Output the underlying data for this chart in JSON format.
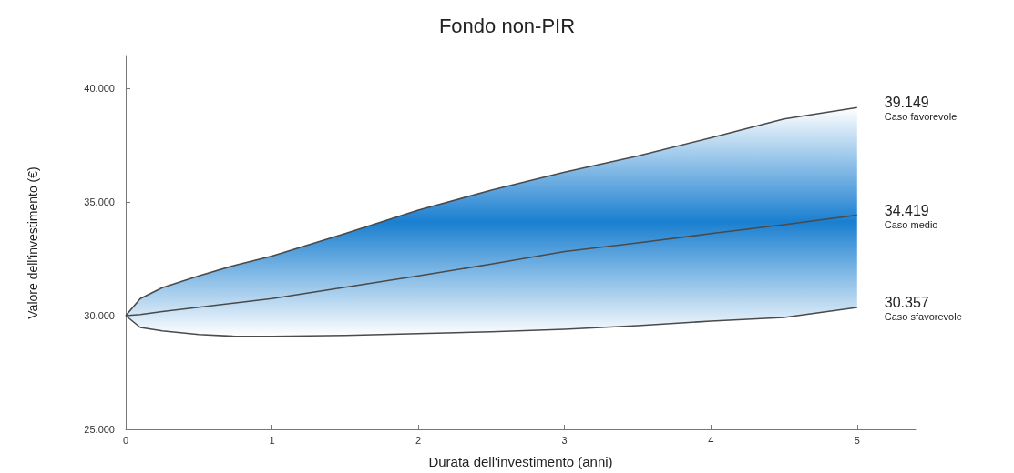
{
  "chart_data": {
    "type": "line",
    "title": "Fondo non-PIR",
    "xlabel": "Durata dell'investimento (anni)",
    "ylabel": "Valore dell'investimento (€)",
    "x": [
      0,
      0.1,
      0.25,
      0.5,
      0.75,
      1,
      1.5,
      2,
      2.5,
      3,
      3.5,
      4,
      4.5,
      5
    ],
    "series": [
      {
        "name": "Caso favorevole",
        "color": "#4a4a4a",
        "values": [
          30000,
          30750,
          31230,
          31750,
          32220,
          32620,
          33610,
          34640,
          35520,
          36310,
          37020,
          37820,
          38650,
          39149
        ],
        "value_labels": [
          null,
          null,
          null,
          null,
          null,
          null,
          null,
          null,
          null,
          null,
          null,
          null,
          null,
          "39.149"
        ]
      },
      {
        "name": "Caso medio",
        "color": "#4a4a4a",
        "values": [
          30000,
          30050,
          30180,
          30370,
          30560,
          30750,
          31250,
          31750,
          32270,
          32820,
          33200,
          33610,
          34000,
          34419
        ],
        "value_labels": [
          null,
          null,
          null,
          null,
          null,
          null,
          null,
          null,
          null,
          null,
          null,
          null,
          null,
          "34.419"
        ],
        "lower": [
          30000,
          29480,
          29330,
          29170,
          29090,
          29090,
          29130,
          29210,
          29290,
          29400,
          29560,
          29760,
          29920,
          30357
        ],
        "upper": [
          30000,
          30750,
          31230,
          31750,
          32220,
          32620,
          33610,
          34640,
          35520,
          36310,
          37020,
          37820,
          38650,
          39149
        ]
      },
      {
        "name": "Caso sfavorevole",
        "color": "#4a4a4a",
        "values": [
          30000,
          29480,
          29330,
          29170,
          29090,
          29090,
          29130,
          29210,
          29290,
          29400,
          29560,
          29760,
          29920,
          30357
        ],
        "value_labels": [
          null,
          null,
          null,
          null,
          null,
          null,
          null,
          null,
          null,
          null,
          null,
          null,
          null,
          "30.357"
        ]
      }
    ],
    "xlim": [
      0,
      5.4
    ],
    "xticks": [
      0,
      1,
      2,
      3,
      4,
      5
    ],
    "ylim": [
      25000,
      41400
    ],
    "yticks": [
      {
        "value": 25000,
        "label": "25.000"
      },
      {
        "value": 30000,
        "label": "30.000"
      },
      {
        "value": 35000,
        "label": "35.000"
      },
      {
        "value": 40000,
        "label": "40.000"
      }
    ],
    "grid": false,
    "legend": false,
    "marker": "none",
    "line_style": "solid"
  }
}
